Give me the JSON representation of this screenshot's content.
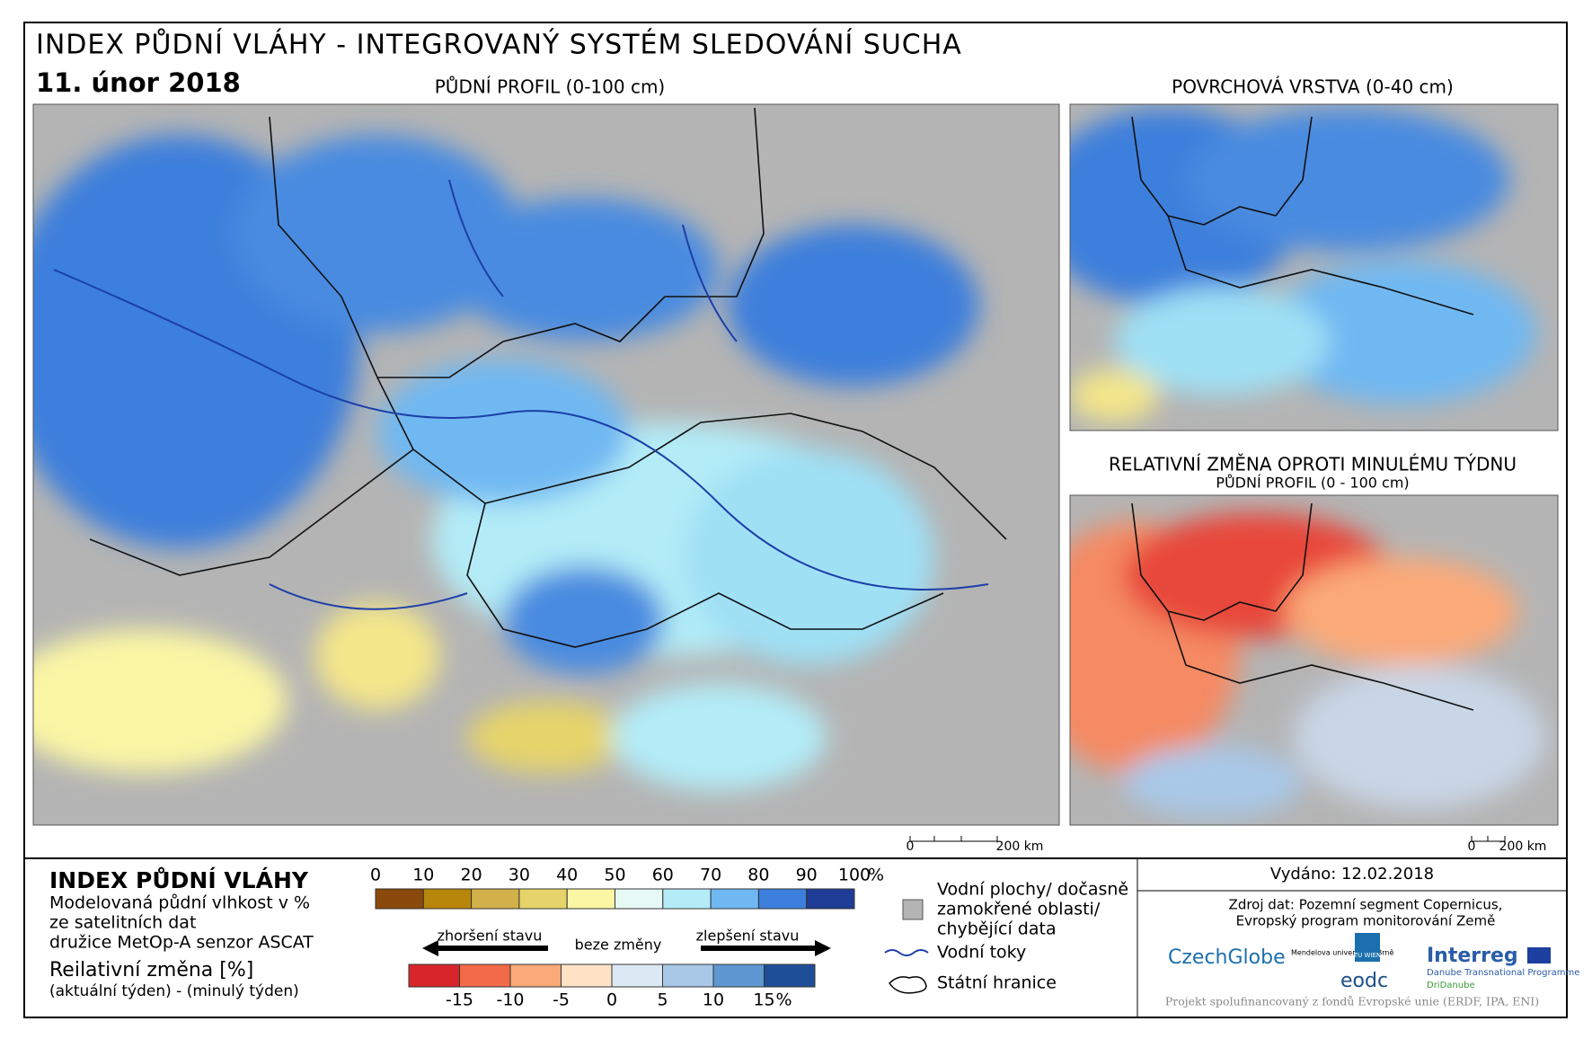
{
  "header": {
    "title": "INDEX PŮDNÍ VLÁHY - INTEGROVANÝ SYSTÉM SLEDOVÁNÍ SUCHA",
    "date": "11. únor 2018"
  },
  "maps": [
    {
      "title": "PŮDNÍ PROFIL (0-100 cm)",
      "scale": [
        "0",
        "200 km"
      ]
    },
    {
      "title": "POVRCHOVÁ VRSTVA (0-40 cm)"
    },
    {
      "title": "RELATIVNÍ ZMĚNA OPROTI MINULÉMU TÝDNU",
      "subtitle": "PŮDNÍ PROFIL (0 - 100 cm)",
      "scale": [
        "0",
        "200 km"
      ]
    }
  ],
  "legend": {
    "title": "INDEX PŮDNÍ VLÁHY",
    "description": [
      "Modelovaná půdní vlhkost v %",
      "ze satelitních dat",
      "družice MetOp-A senzor ASCAT"
    ],
    "index_scale": {
      "ticks": [
        0,
        10,
        20,
        30,
        40,
        50,
        60,
        70,
        80,
        90,
        100
      ],
      "unit": "%",
      "colors": [
        "#8b4a0b",
        "#b8860b",
        "#d2b04a",
        "#e6d46a",
        "#fbf6a4",
        "#e6f9f4",
        "#b3ecf7",
        "#6fb8f2",
        "#3d7fdc",
        "#1f3c96"
      ]
    },
    "change_title": "Reilativní změna [%]",
    "change_subtitle": "(aktuální týden) - (minulý týden)",
    "arrows": {
      "left": "zhoršení stavu",
      "center": "beze změny",
      "right": "zlepšení stavu"
    },
    "change_scale": {
      "ticks": [
        -15,
        -10,
        -5,
        0,
        5,
        10,
        15
      ],
      "unit": "%",
      "colors": [
        "#d7262b",
        "#f16a4a",
        "#fba978",
        "#fde2c6",
        "#dce9f4",
        "#a9c8e8",
        "#5f97d2",
        "#1f4e99"
      ]
    },
    "symbols": [
      "Vodní plochy/ dočasně",
      "zamokřené oblasti/",
      "chybějící data",
      "Vodní toky",
      "Státní hranice"
    ]
  },
  "footer": {
    "issued": "Vydáno: 12.02.2018",
    "source": [
      "Zdroj dat: Pozemní segment Copernicus,",
      "Evropský program monitorování Země"
    ],
    "logos": [
      "CzechGlobe",
      "Mendelova univerzita v Brně",
      "TU WIEN",
      "eodc",
      "Interreg",
      "Danube Transnational Programme",
      "DriDanube"
    ],
    "note": "Projekt spolufinancovaný z fondů Evropské unie (ERDF, IPA, ENI)"
  }
}
